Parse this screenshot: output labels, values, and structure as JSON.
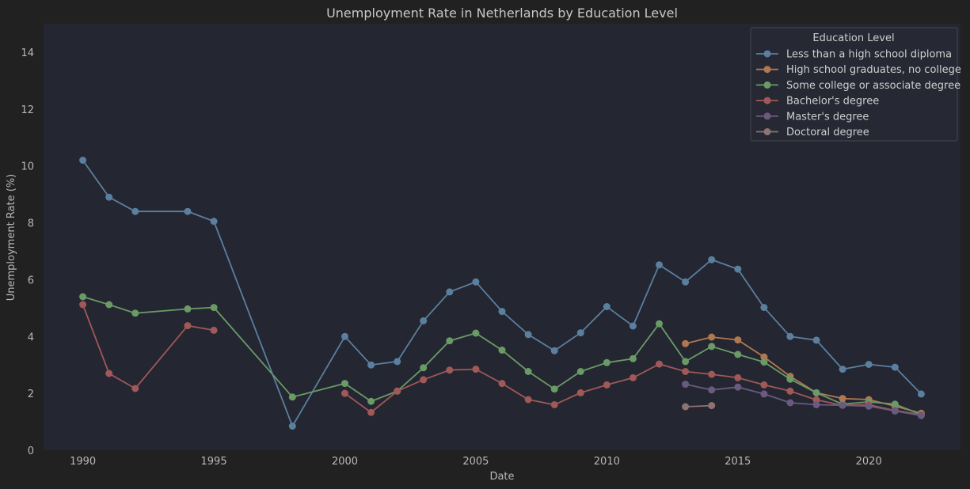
{
  "chart_data": {
    "type": "line",
    "title": "Unemployment Rate in Netherlands by Education Level",
    "xlabel": "Date",
    "ylabel": "Unemployment Rate (%)",
    "xlim": [
      1988.5,
      2023.5
    ],
    "ylim": [
      0,
      15
    ],
    "x_ticks": [
      1990,
      1995,
      2000,
      2005,
      2010,
      2015,
      2020
    ],
    "y_ticks": [
      0,
      2,
      4,
      6,
      8,
      10,
      12,
      14
    ],
    "grid": false,
    "legend": {
      "title": "Education Level",
      "position": "top-right"
    },
    "series": [
      {
        "name": "Less than a high school diploma",
        "color": "#5b7f9e",
        "points": [
          [
            1990,
            10.2
          ],
          [
            1991,
            8.9
          ],
          [
            1992,
            8.4
          ],
          [
            1994,
            8.4
          ],
          [
            1995,
            8.05
          ],
          [
            1998,
            0.85
          ],
          [
            2000,
            4.0
          ],
          [
            2001,
            3.0
          ],
          [
            2002,
            3.12
          ],
          [
            2003,
            4.55
          ],
          [
            2004,
            5.57
          ],
          [
            2005,
            5.92
          ],
          [
            2006,
            4.88
          ],
          [
            2007,
            4.07
          ],
          [
            2008,
            3.5
          ],
          [
            2009,
            4.13
          ],
          [
            2010,
            5.05
          ],
          [
            2011,
            4.37
          ],
          [
            2012,
            6.52
          ],
          [
            2013,
            5.92
          ],
          [
            2014,
            6.7
          ],
          [
            2015,
            6.37
          ],
          [
            2016,
            5.02
          ],
          [
            2017,
            4.0
          ],
          [
            2018,
            3.87
          ],
          [
            2019,
            2.85
          ],
          [
            2020,
            3.02
          ],
          [
            2021,
            2.92
          ],
          [
            2022,
            1.98
          ]
        ]
      },
      {
        "name": "High school graduates, no college",
        "color": "#b07850",
        "points": [
          [
            2013,
            3.75
          ],
          [
            2014,
            3.98
          ],
          [
            2015,
            3.88
          ],
          [
            2016,
            3.28
          ],
          [
            2017,
            2.6
          ],
          [
            2018,
            2.02
          ],
          [
            2019,
            1.82
          ],
          [
            2020,
            1.78
          ],
          [
            2021,
            1.55
          ],
          [
            2022,
            1.3
          ]
        ]
      },
      {
        "name": "Some college or associate degree",
        "color": "#6a9a66",
        "points": [
          [
            1990,
            5.4
          ],
          [
            1991,
            5.12
          ],
          [
            1992,
            4.82
          ],
          [
            1994,
            4.97
          ],
          [
            1995,
            5.02
          ],
          [
            1998,
            1.87
          ],
          [
            2000,
            2.35
          ],
          [
            2001,
            1.72
          ],
          [
            2002,
            2.08
          ],
          [
            2003,
            2.9
          ],
          [
            2004,
            3.85
          ],
          [
            2005,
            4.12
          ],
          [
            2006,
            3.52
          ],
          [
            2007,
            2.77
          ],
          [
            2008,
            2.15
          ],
          [
            2009,
            2.77
          ],
          [
            2010,
            3.08
          ],
          [
            2011,
            3.22
          ],
          [
            2012,
            4.45
          ],
          [
            2013,
            3.12
          ],
          [
            2014,
            3.65
          ],
          [
            2015,
            3.37
          ],
          [
            2016,
            3.1
          ],
          [
            2017,
            2.5
          ],
          [
            2018,
            2.02
          ],
          [
            2019,
            1.62
          ],
          [
            2020,
            1.7
          ],
          [
            2021,
            1.62
          ],
          [
            2022,
            1.25
          ]
        ]
      },
      {
        "name": "Bachelor's degree",
        "color": "#a05858",
        "segments": [
          [
            [
              1990,
              5.12
            ],
            [
              1991,
              2.7
            ],
            [
              1992,
              2.17
            ],
            [
              1994,
              4.38
            ],
            [
              1995,
              4.22
            ]
          ],
          [
            [
              2000,
              2.0
            ],
            [
              2001,
              1.33
            ],
            [
              2002,
              2.08
            ],
            [
              2003,
              2.48
            ],
            [
              2004,
              2.82
            ],
            [
              2005,
              2.85
            ],
            [
              2006,
              2.35
            ],
            [
              2007,
              1.78
            ],
            [
              2008,
              1.6
            ],
            [
              2009,
              2.02
            ],
            [
              2010,
              2.3
            ],
            [
              2011,
              2.55
            ],
            [
              2012,
              3.03
            ],
            [
              2013,
              2.77
            ],
            [
              2014,
              2.67
            ],
            [
              2015,
              2.55
            ],
            [
              2016,
              2.3
            ],
            [
              2017,
              2.08
            ],
            [
              2018,
              1.77
            ],
            [
              2019,
              1.58
            ],
            [
              2020,
              1.6
            ],
            [
              2021,
              1.4
            ],
            [
              2022,
              1.25
            ]
          ]
        ]
      },
      {
        "name": "Master's degree",
        "color": "#6a5a80",
        "points": [
          [
            2013,
            2.32
          ],
          [
            2014,
            2.12
          ],
          [
            2015,
            2.22
          ],
          [
            2016,
            1.98
          ],
          [
            2017,
            1.67
          ],
          [
            2018,
            1.6
          ],
          [
            2019,
            1.58
          ],
          [
            2020,
            1.55
          ],
          [
            2021,
            1.38
          ],
          [
            2022,
            1.22
          ]
        ]
      },
      {
        "name": "Doctoral degree",
        "color": "#8c7470",
        "points": [
          [
            2013,
            1.53
          ],
          [
            2014,
            1.57
          ]
        ]
      }
    ]
  }
}
